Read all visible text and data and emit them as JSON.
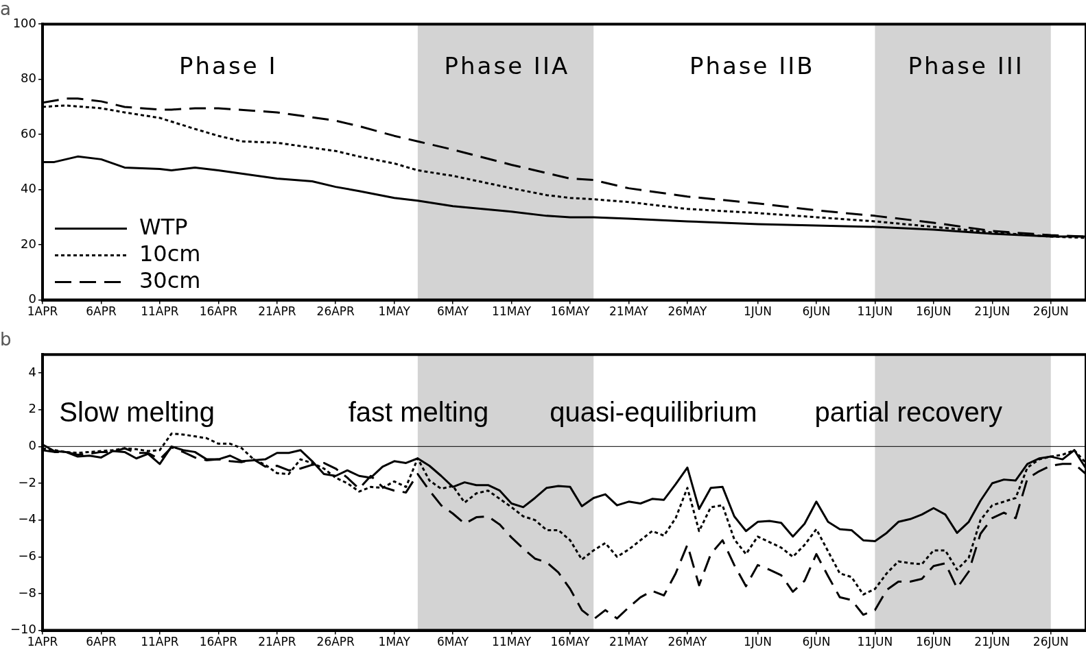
{
  "chart_data": [
    {
      "type": "line",
      "title": "a",
      "xlim": [
        "--04-01",
        "--06-29"
      ],
      "ylim": [
        0,
        100
      ],
      "yticks": [
        0,
        20,
        40,
        60,
        80,
        100
      ],
      "xticks": [
        {
          "value": "--04-01",
          "label": "1APR"
        },
        {
          "value": "--04-06",
          "label": "6APR"
        },
        {
          "value": "--04-11",
          "label": "11APR"
        },
        {
          "value": "--04-16",
          "label": "16APR"
        },
        {
          "value": "--04-21",
          "label": "21APR"
        },
        {
          "value": "--04-26",
          "label": "26APR"
        },
        {
          "value": "--05-01",
          "label": "1MAY"
        },
        {
          "value": "--05-06",
          "label": "6MAY"
        },
        {
          "value": "--05-11",
          "label": "11MAY"
        },
        {
          "value": "--05-16",
          "label": "16MAY"
        },
        {
          "value": "--05-21",
          "label": "21MAY"
        },
        {
          "value": "--05-26",
          "label": "26MAY"
        },
        {
          "value": "--06-01",
          "label": "1JUN"
        },
        {
          "value": "--06-06",
          "label": "6JUN"
        },
        {
          "value": "--06-11",
          "label": "11JUN"
        },
        {
          "value": "--06-16",
          "label": "16JUN"
        },
        {
          "value": "--06-21",
          "label": "21JUN"
        },
        {
          "value": "--06-26",
          "label": "26JUN"
        }
      ],
      "grid": false,
      "legend": "bottom left",
      "marker": "none",
      "bands": [
        {
          "axis": "x",
          "from": "--05-03",
          "to": "--05-18",
          "color": "#d3d3d3"
        },
        {
          "axis": "x",
          "from": "--06-11",
          "to": "--06-26",
          "color": "#d3d3d3"
        }
      ],
      "annotations": [
        "Phase I",
        "Phase IIA",
        "Phase IIB",
        "Phase III"
      ],
      "series": [
        {
          "name": "WTP",
          "color": "#000000",
          "line_style": "solid",
          "x": [
            "--04-01",
            "--04-02",
            "--04-03",
            "--04-04",
            "--04-06",
            "--04-08",
            "--04-11",
            "--04-12",
            "--04-14",
            "--04-16",
            "--04-21",
            "--04-24",
            "--04-26",
            "--04-28",
            "--05-01",
            "--05-03",
            "--05-06",
            "--05-11",
            "--05-14",
            "--05-16",
            "--05-18",
            "--05-21",
            "--05-26",
            "--06-01",
            "--06-06",
            "--06-11",
            "--06-16",
            "--06-21",
            "--06-26",
            "--06-29"
          ],
          "values": [
            50,
            50,
            51,
            52,
            51,
            48,
            47.5,
            47,
            48,
            47,
            44,
            43,
            41,
            39.5,
            37,
            36,
            34,
            32,
            30.5,
            30,
            30,
            29.5,
            28.5,
            27.5,
            27,
            26.5,
            25.5,
            24,
            23,
            23
          ]
        },
        {
          "name": "10cm",
          "color": "#000000",
          "line_style": "dotted",
          "x": [
            "--04-01",
            "--04-03",
            "--04-06",
            "--04-08",
            "--04-11",
            "--04-14",
            "--04-16",
            "--04-18",
            "--04-21",
            "--04-26",
            "--04-28",
            "--05-01",
            "--05-03",
            "--05-06",
            "--05-11",
            "--05-14",
            "--05-16",
            "--05-18",
            "--05-21",
            "--05-26",
            "--06-01",
            "--06-06",
            "--06-11",
            "--06-16",
            "--06-21",
            "--06-26",
            "--06-29"
          ],
          "values": [
            70,
            70.5,
            69.5,
            68,
            66,
            62,
            59.5,
            57.5,
            57,
            54,
            52,
            49.5,
            47,
            45,
            40.5,
            38,
            37,
            36.5,
            35.5,
            33,
            31.5,
            30,
            28.5,
            26.5,
            24.5,
            23,
            22.5
          ]
        },
        {
          "name": "30cm",
          "color": "#000000",
          "line_style": "dashed",
          "x": [
            "--04-01",
            "--04-03",
            "--04-04",
            "--04-06",
            "--04-08",
            "--04-11",
            "--04-12",
            "--04-14",
            "--04-16",
            "--04-21",
            "--04-26",
            "--04-28",
            "--05-01",
            "--05-03",
            "--05-06",
            "--05-11",
            "--05-14",
            "--05-16",
            "--05-18",
            "--05-21",
            "--05-26",
            "--06-01",
            "--06-06",
            "--06-11",
            "--06-16",
            "--06-21",
            "--06-26",
            "--06-29"
          ],
          "values": [
            71.5,
            73,
            73,
            72,
            70,
            69,
            69,
            69.5,
            69.5,
            68,
            65,
            63,
            59.5,
            57.5,
            54.5,
            49,
            46,
            44,
            43.5,
            40.5,
            37.5,
            35,
            32.5,
            30.5,
            28,
            25,
            23.5,
            23
          ]
        }
      ]
    },
    {
      "type": "line",
      "title": "b",
      "xlim": [
        "--04-01",
        "--06-29"
      ],
      "ylim": [
        -10,
        5
      ],
      "yticks": [
        -10,
        -8,
        -6,
        -4,
        -2,
        0,
        2,
        4
      ],
      "xticks": [
        {
          "value": "--04-01",
          "label": "1APR"
        },
        {
          "value": "--04-06",
          "label": "6APR"
        },
        {
          "value": "--04-11",
          "label": "11APR"
        },
        {
          "value": "--04-16",
          "label": "16APR"
        },
        {
          "value": "--04-21",
          "label": "21APR"
        },
        {
          "value": "--04-26",
          "label": "26APR"
        },
        {
          "value": "--05-01",
          "label": "1MAY"
        },
        {
          "value": "--05-06",
          "label": "6MAY"
        },
        {
          "value": "--05-11",
          "label": "11MAY"
        },
        {
          "value": "--05-16",
          "label": "16MAY"
        },
        {
          "value": "--05-21",
          "label": "21MAY"
        },
        {
          "value": "--05-26",
          "label": "26MAY"
        },
        {
          "value": "--06-01",
          "label": "1JUN"
        },
        {
          "value": "--06-06",
          "label": "6JUN"
        },
        {
          "value": "--06-11",
          "label": "11JUN"
        },
        {
          "value": "--06-16",
          "label": "16JUN"
        },
        {
          "value": "--06-21",
          "label": "21JUN"
        },
        {
          "value": "--06-26",
          "label": "26JUN"
        }
      ],
      "grid": false,
      "marker": "none",
      "bands": [
        {
          "axis": "x",
          "from": "--05-03",
          "to": "--05-18",
          "color": "#d3d3d3"
        },
        {
          "axis": "x",
          "from": "--06-11",
          "to": "--06-26",
          "color": "#d3d3d3"
        }
      ],
      "ref_lines": [
        {
          "axis": "y",
          "value": 0,
          "color": "#000000"
        }
      ],
      "annotations": [
        "Slow melting",
        "fast melting",
        "quasi-equilibrium",
        "partial recovery"
      ],
      "x": [
        "--04-01",
        "--04-02",
        "--04-03",
        "--04-04",
        "--04-05",
        "--04-06",
        "--04-07",
        "--04-08",
        "--04-09",
        "--04-10",
        "--04-11",
        "--04-12",
        "--04-13",
        "--04-14",
        "--04-15",
        "--04-16",
        "--04-17",
        "--04-18",
        "--04-19",
        "--04-20",
        "--04-21",
        "--04-22",
        "--04-23",
        "--04-24",
        "--04-25",
        "--04-26",
        "--04-27",
        "--04-28",
        "--04-29",
        "--04-30",
        "--05-01",
        "--05-02",
        "--05-03",
        "--05-04",
        "--05-05",
        "--05-06",
        "--05-07",
        "--05-08",
        "--05-09",
        "--05-10",
        "--05-11",
        "--05-12",
        "--05-13",
        "--05-14",
        "--05-15",
        "--05-16",
        "--05-17",
        "--05-18",
        "--05-19",
        "--05-20",
        "--05-21",
        "--05-22",
        "--05-23",
        "--05-24",
        "--05-25",
        "--05-26",
        "--05-27",
        "--05-28",
        "--05-29",
        "--05-30",
        "--05-31",
        "--06-01",
        "--06-02",
        "--06-03",
        "--06-04",
        "--06-05",
        "--06-06",
        "--06-07",
        "--06-08",
        "--06-09",
        "--06-10",
        "--06-11",
        "--06-12",
        "--06-13",
        "--06-14",
        "--06-15",
        "--06-16",
        "--06-17",
        "--06-18",
        "--06-19",
        "--06-20",
        "--06-21",
        "--06-22",
        "--06-23",
        "--06-24",
        "--06-25",
        "--06-26",
        "--06-27",
        "--06-28",
        "--06-29"
      ],
      "series": [
        {
          "color": "#000000",
          "line_style": "solid",
          "values": [
            0.1,
            -0.25,
            -0.3,
            -0.55,
            -0.5,
            -0.6,
            -0.25,
            -0.3,
            -0.65,
            -0.4,
            -0.95,
            0,
            -0.2,
            -0.3,
            -0.7,
            -0.7,
            -0.5,
            -0.8,
            -0.75,
            -0.7,
            -0.35,
            -0.35,
            -0.2,
            -0.8,
            -1.5,
            -1.6,
            -1.3,
            -1.6,
            -1.7,
            -1.1,
            -0.8,
            -0.9,
            -0.65,
            -1.05,
            -1.6,
            -2.2,
            -1.95,
            -2.1,
            -2.1,
            -2.4,
            -3.1,
            -3.3,
            -2.8,
            -2.25,
            -2.15,
            -2.2,
            -3.25,
            -2.8,
            -2.6,
            -3.2,
            -3.0,
            -3.1,
            -2.85,
            -2.9,
            -2.05,
            -1.15,
            -3.4,
            -2.25,
            -2.2,
            -3.8,
            -4.6,
            -4.1,
            -4.05,
            -4.15,
            -4.9,
            -4.2,
            -3.0,
            -4.1,
            -4.5,
            -4.55,
            -5.1,
            -5.15,
            -4.7,
            -4.1,
            -3.95,
            -3.7,
            -3.35,
            -3.7,
            -4.7,
            -4.1,
            -2.95,
            -2.0,
            -1.8,
            -1.85,
            -0.95,
            -0.65,
            -0.55,
            -0.7,
            -0.2,
            -1.2
          ]
        },
        {
          "color": "#000000",
          "line_style": "dotted",
          "values": [
            -0.1,
            -0.2,
            -0.3,
            -0.35,
            -0.3,
            -0.25,
            -0.2,
            -0.1,
            -0.15,
            -0.25,
            -0.2,
            0.7,
            0.65,
            0.55,
            0.45,
            0.15,
            0.15,
            -0.1,
            -0.7,
            -1.0,
            -1.45,
            -1.5,
            -0.7,
            -0.9,
            -1.2,
            -1.7,
            -2.0,
            -2.45,
            -2.2,
            -2.25,
            -1.9,
            -2.2,
            -0.65,
            -1.85,
            -2.3,
            -2.15,
            -3.05,
            -2.55,
            -2.4,
            -2.85,
            -3.3,
            -3.8,
            -4.0,
            -4.55,
            -4.55,
            -5.1,
            -6.15,
            -5.65,
            -5.25,
            -6.0,
            -5.6,
            -5.1,
            -4.6,
            -4.85,
            -3.9,
            -2.25,
            -4.6,
            -3.3,
            -3.2,
            -5.05,
            -5.85,
            -4.9,
            -5.2,
            -5.5,
            -6.0,
            -5.35,
            -4.5,
            -5.7,
            -6.9,
            -7.1,
            -8.05,
            -7.75,
            -6.9,
            -6.25,
            -6.35,
            -6.4,
            -5.65,
            -5.65,
            -6.7,
            -6.05,
            -4.0,
            -3.2,
            -3.0,
            -2.8,
            -1.15,
            -0.7,
            -0.55,
            -0.45,
            -0.2,
            -0.9
          ]
        },
        {
          "color": "#000000",
          "line_style": "dashed",
          "values": [
            -0.2,
            -0.3,
            -0.3,
            -0.45,
            -0.4,
            -0.3,
            -0.3,
            -0.1,
            -0.35,
            -0.35,
            -0.7,
            -0.05,
            -0.3,
            -0.6,
            -0.75,
            -0.7,
            -0.8,
            -0.85,
            -0.7,
            -1.1,
            -1.05,
            -1.3,
            -1.2,
            -1.0,
            -0.9,
            -1.2,
            -1.7,
            -2.3,
            -1.6,
            -2.2,
            -2.4,
            -2.5,
            -1.5,
            -2.4,
            -3.2,
            -3.65,
            -4.2,
            -3.85,
            -3.8,
            -4.25,
            -4.95,
            -5.55,
            -6.1,
            -6.3,
            -6.85,
            -7.75,
            -8.9,
            -9.4,
            -8.9,
            -9.35,
            -8.75,
            -8.2,
            -7.85,
            -8.1,
            -6.9,
            -5.35,
            -7.55,
            -5.85,
            -5.1,
            -6.45,
            -7.6,
            -6.45,
            -6.7,
            -7.0,
            -7.9,
            -7.3,
            -5.85,
            -7.05,
            -8.2,
            -8.35,
            -9.15,
            -8.9,
            -7.8,
            -7.35,
            -7.35,
            -7.2,
            -6.5,
            -6.35,
            -7.7,
            -6.8,
            -4.75,
            -3.9,
            -3.6,
            -3.9,
            -1.75,
            -1.35,
            -1.05,
            -0.95,
            -0.95,
            -1.5
          ]
        }
      ]
    }
  ]
}
